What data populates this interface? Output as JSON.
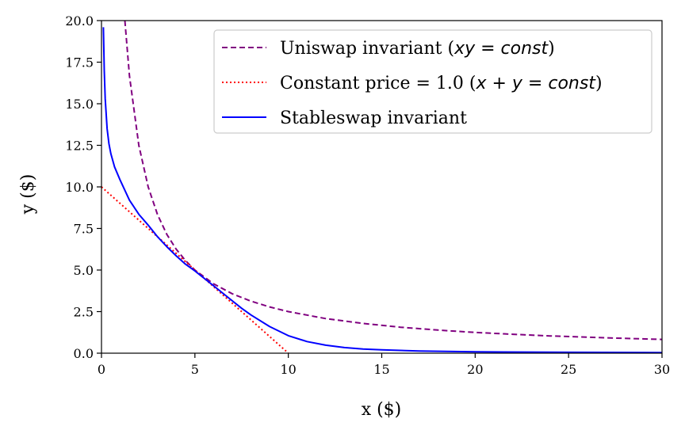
{
  "chart_data": {
    "type": "line",
    "title": "",
    "xlabel": "x ($)",
    "ylabel": "y ($)",
    "xlim": [
      0,
      30
    ],
    "ylim": [
      0,
      20
    ],
    "xticks": [
      0,
      5,
      10,
      15,
      20,
      25,
      30
    ],
    "yticks": [
      0.0,
      2.5,
      5.0,
      7.5,
      10.0,
      12.5,
      15.0,
      17.5,
      20.0
    ],
    "xtick_labels": [
      "0",
      "5",
      "10",
      "15",
      "20",
      "25",
      "30"
    ],
    "ytick_labels": [
      "0.0",
      "2.5",
      "5.0",
      "7.5",
      "10.0",
      "12.5",
      "15.0",
      "17.5",
      "20.0"
    ],
    "grid": false,
    "legend_position": "top-right",
    "series": [
      {
        "name": "Uniswap invariant (xy = const)",
        "legend_prefix": "Uniswap invariant (",
        "legend_math": "xy = const",
        "legend_suffix": ")",
        "color": "#800080",
        "style": "dashed",
        "x": [
          1.25,
          1.5,
          2,
          2.5,
          3,
          3.5,
          4,
          4.5,
          5,
          6,
          7,
          8,
          9,
          10,
          12,
          14,
          16,
          18,
          20,
          22,
          24,
          26,
          28,
          30
        ],
        "y": [
          20.0,
          16.67,
          12.5,
          10.0,
          8.33,
          7.14,
          6.25,
          5.56,
          5.0,
          4.17,
          3.57,
          3.13,
          2.78,
          2.5,
          2.08,
          1.79,
          1.56,
          1.39,
          1.25,
          1.14,
          1.04,
          0.96,
          0.89,
          0.83
        ]
      },
      {
        "name": "Constant price = 1.0 (x + y = const)",
        "legend_prefix": "Constant price = 1.0 (",
        "legend_math": "x + y = const",
        "legend_suffix": ")",
        "color": "#ff0000",
        "style": "dotted",
        "x": [
          0,
          10
        ],
        "y": [
          10,
          0
        ]
      },
      {
        "name": "Stableswap invariant",
        "legend_prefix": "Stableswap invariant",
        "legend_math": "",
        "legend_suffix": "",
        "color": "#0000ff",
        "style": "solid",
        "x": [
          0.1,
          0.15,
          0.2,
          0.3,
          0.4,
          0.5,
          0.7,
          1.0,
          1.5,
          2.0,
          2.5,
          3.0,
          3.5,
          4.0,
          4.5,
          5.0,
          5.5,
          6.0,
          6.5,
          7.0,
          7.5,
          8.0,
          9.0,
          10.0,
          11.0,
          12.0,
          13.0,
          14.0,
          15.0,
          17.0,
          20.0,
          25.0,
          30.0
        ],
        "y": [
          19.6,
          17.0,
          15.3,
          13.5,
          12.6,
          12.0,
          11.2,
          10.4,
          9.2,
          8.35,
          7.7,
          7.0,
          6.4,
          5.85,
          5.35,
          4.95,
          4.5,
          4.05,
          3.6,
          3.15,
          2.7,
          2.3,
          1.6,
          1.05,
          0.7,
          0.48,
          0.34,
          0.25,
          0.2,
          0.13,
          0.08,
          0.05,
          0.04
        ]
      }
    ]
  }
}
